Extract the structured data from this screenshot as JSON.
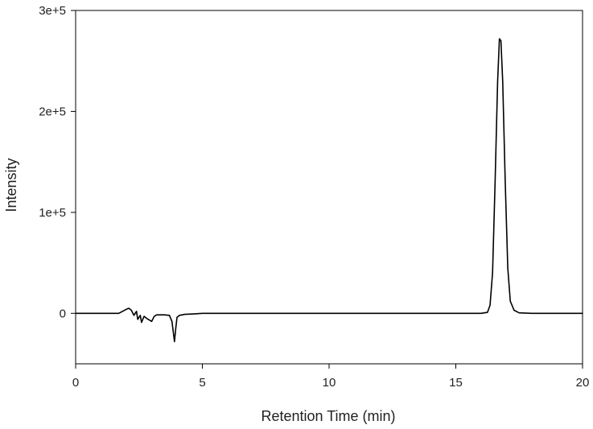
{
  "chart_data": {
    "type": "line",
    "title": "",
    "xlabel": "Retention Time (min)",
    "ylabel": "Intensity",
    "xlim": [
      0,
      20
    ],
    "ylim": [
      -50000,
      300000
    ],
    "grid": false,
    "legend": "none",
    "line_color": "#000000",
    "x_ticks": [
      {
        "value": 0,
        "label": "0"
      },
      {
        "value": 5,
        "label": "5"
      },
      {
        "value": 10,
        "label": "10"
      },
      {
        "value": 15,
        "label": "15"
      },
      {
        "value": 20,
        "label": "20"
      }
    ],
    "y_ticks": [
      {
        "value": 0,
        "label": "0"
      },
      {
        "value": 100000,
        "label": "1e+5"
      },
      {
        "value": 200000,
        "label": "2e+5"
      },
      {
        "value": 300000,
        "label": "3e+5"
      }
    ],
    "series": [
      {
        "x": [
          0.0,
          1.7,
          1.85,
          2.0,
          2.1,
          2.2,
          2.3,
          2.4,
          2.45,
          2.55,
          2.6,
          2.7,
          2.8,
          3.0,
          3.1,
          3.2,
          3.5,
          3.7,
          3.8,
          3.85,
          3.9,
          3.95,
          4.0,
          4.1,
          4.3,
          4.7,
          5.0,
          10.0,
          15.0,
          16.0,
          16.25,
          16.35,
          16.45,
          16.55,
          16.65,
          16.72,
          16.78,
          16.85,
          16.95,
          17.05,
          17.15,
          17.3,
          17.5,
          18.0,
          20.0
        ],
        "y": [
          0,
          0,
          2000,
          4000,
          5000,
          3000,
          -2000,
          2000,
          -6000,
          -2000,
          -9000,
          -3000,
          -5000,
          -8000,
          -3000,
          -1500,
          -1500,
          -2000,
          -8000,
          -18000,
          -28000,
          -15000,
          -4000,
          -2000,
          -1000,
          -500,
          0,
          0,
          0,
          0,
          1000,
          8000,
          40000,
          130000,
          230000,
          272000,
          270000,
          230000,
          130000,
          45000,
          12000,
          3000,
          500,
          0,
          0
        ]
      }
    ]
  }
}
